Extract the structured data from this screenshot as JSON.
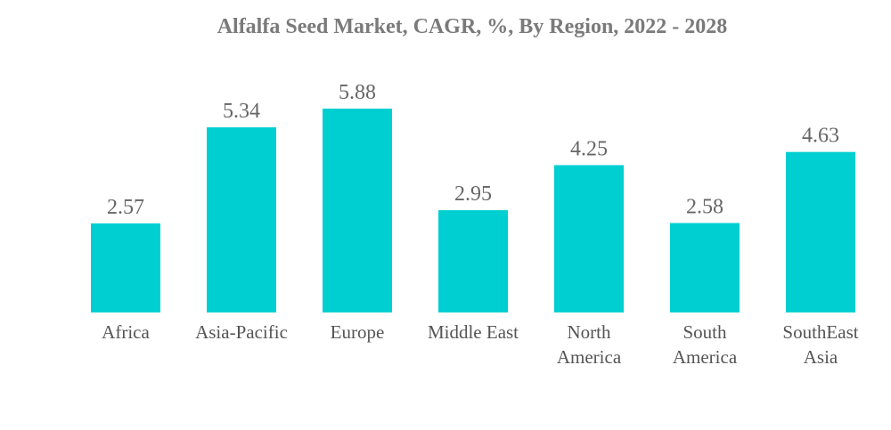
{
  "colors": {
    "bar": "#00cfd2",
    "title": "#7a7a7a",
    "value_label": "#666666",
    "tick_label": "#555555"
  },
  "chart_data": {
    "type": "bar",
    "title": "Alfalfa Seed Market, CAGR, %, By Region, 2022 - 2028",
    "xlabel": "",
    "ylabel": "",
    "ylim": [
      0,
      5.88
    ],
    "grid": false,
    "legend": "none",
    "categories": [
      [
        "Africa"
      ],
      [
        "Asia-Pacific"
      ],
      [
        "Europe"
      ],
      [
        "Middle East"
      ],
      [
        "North",
        "America"
      ],
      [
        "South",
        "America"
      ],
      [
        "SouthEast",
        "Asia"
      ]
    ],
    "values": [
      2.57,
      5.34,
      5.88,
      2.95,
      4.25,
      2.58,
      4.63
    ],
    "value_labels": [
      "2.57",
      "5.34",
      "5.88",
      "2.95",
      "4.25",
      "2.58",
      "4.63"
    ]
  }
}
